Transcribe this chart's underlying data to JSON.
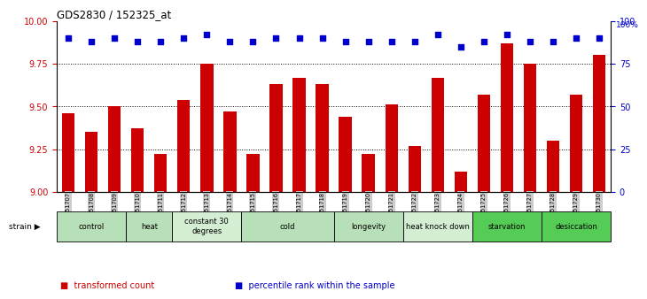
{
  "title": "GDS2830 / 152325_at",
  "samples": [
    "GSM151707",
    "GSM151708",
    "GSM151709",
    "GSM151710",
    "GSM151711",
    "GSM151712",
    "GSM151713",
    "GSM151714",
    "GSM151715",
    "GSM151716",
    "GSM151717",
    "GSM151718",
    "GSM151719",
    "GSM151720",
    "GSM151721",
    "GSM151722",
    "GSM151723",
    "GSM151724",
    "GSM151725",
    "GSM151726",
    "GSM151727",
    "GSM151728",
    "GSM151729",
    "GSM151730"
  ],
  "bar_values": [
    9.46,
    9.35,
    9.5,
    9.37,
    9.22,
    9.54,
    9.75,
    9.47,
    9.22,
    9.63,
    9.67,
    9.63,
    9.44,
    9.22,
    9.51,
    9.27,
    9.67,
    9.12,
    9.57,
    9.87,
    9.75,
    9.3,
    9.57,
    9.8
  ],
  "percentile_values": [
    90,
    88,
    90,
    88,
    88,
    90,
    92,
    88,
    88,
    90,
    90,
    90,
    88,
    88,
    88,
    88,
    92,
    85,
    88,
    92,
    88,
    88,
    90,
    90
  ],
  "bar_color": "#cc0000",
  "dot_color": "#0000cc",
  "ylim_left": [
    9.0,
    10.0
  ],
  "ylim_right": [
    0,
    100
  ],
  "yticks_left": [
    9.0,
    9.25,
    9.5,
    9.75,
    10.0
  ],
  "yticks_right": [
    0,
    25,
    50,
    75,
    100
  ],
  "dotted_lines": [
    9.25,
    9.5,
    9.75
  ],
  "groups": [
    {
      "label": "control",
      "start": 0,
      "end": 2,
      "color": "#b8e0b8"
    },
    {
      "label": "heat",
      "start": 3,
      "end": 4,
      "color": "#b8e0b8"
    },
    {
      "label": "constant 30\ndegrees",
      "start": 5,
      "end": 7,
      "color": "#d4eed4"
    },
    {
      "label": "cold",
      "start": 8,
      "end": 11,
      "color": "#b8e0b8"
    },
    {
      "label": "longevity",
      "start": 12,
      "end": 14,
      "color": "#b8e0b8"
    },
    {
      "label": "heat knock down",
      "start": 15,
      "end": 17,
      "color": "#d4eed4"
    },
    {
      "label": "starvation",
      "start": 18,
      "end": 20,
      "color": "#55cc55"
    },
    {
      "label": "desiccation",
      "start": 21,
      "end": 23,
      "color": "#55cc55"
    }
  ],
  "legend_items": [
    {
      "label": "transformed count",
      "color": "#cc0000"
    },
    {
      "label": "percentile rank within the sample",
      "color": "#0000cc"
    }
  ],
  "bar_width": 0.55,
  "background_color": "#ffffff",
  "tick_label_color_left": "#cc0000",
  "tick_label_color_right": "#0000cc",
  "xtick_bg_color": "#cccccc"
}
